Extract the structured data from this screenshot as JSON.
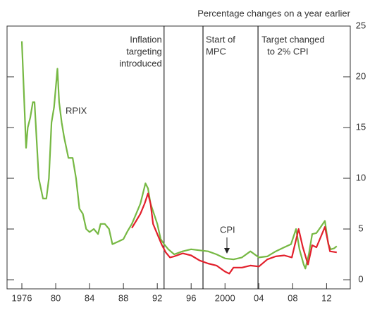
{
  "chart_data": {
    "type": "line",
    "y_label": "Percentage changes on a year earlier",
    "xlim": [
      1974.25,
      2014.8
    ],
    "ylim": [
      -0.9,
      25
    ],
    "xticks": [
      1976,
      {
        "value": 1980,
        "label": "80"
      },
      {
        "value": 1984,
        "label": "84"
      },
      {
        "value": 1988,
        "label": "88"
      },
      {
        "value": 1992,
        "label": "92"
      },
      {
        "value": 1996,
        "label": "96"
      },
      2000,
      {
        "value": 2004,
        "label": "04"
      },
      {
        "value": 2008,
        "label": "08"
      },
      {
        "value": 2012,
        "label": "12"
      }
    ],
    "yticks": [
      0,
      5,
      10,
      15,
      20,
      25
    ],
    "events": [
      {
        "x": 1992.8,
        "label": [
          "Inflation",
          "targeting",
          "introduced"
        ]
      },
      {
        "x": 1997.4,
        "label": [
          "Start of",
          "MPC"
        ]
      },
      {
        "x": 2003.9,
        "label": [
          "Target changed",
          "to 2% CPI"
        ]
      }
    ],
    "series": [
      {
        "name": "RPIX",
        "color": "#76b843",
        "x": [
          1976.0,
          1976.5,
          1976.7,
          1977.0,
          1977.3,
          1977.5,
          1977.8,
          1978.0,
          1978.5,
          1978.9,
          1979.2,
          1979.5,
          1979.8,
          1980.2,
          1980.4,
          1980.7,
          1981.0,
          1981.5,
          1982.0,
          1982.4,
          1982.8,
          1983.2,
          1983.6,
          1984.0,
          1984.5,
          1985.0,
          1985.3,
          1985.8,
          1986.3,
          1986.7,
          1987.5,
          1988.0,
          1988.5,
          1989.0,
          1989.5,
          1990.0,
          1990.3,
          1990.6,
          1990.9,
          1991.2,
          1991.6,
          1992.0,
          1992.4,
          1992.8,
          1993.3,
          1994,
          1995,
          1996,
          1997,
          1998,
          1999,
          2000,
          2001,
          2002,
          2003,
          2004,
          2005,
          2006,
          2007,
          2007.8,
          2008.4,
          2008.8,
          2009.3,
          2009.5,
          2009.9,
          2010.3,
          2010.8,
          2011.3,
          2011.8,
          2012.2,
          2012.5,
          2012.9,
          2013.2
        ],
        "values": [
          23.5,
          13,
          15,
          16,
          17.5,
          17.5,
          13,
          10,
          8,
          8,
          10,
          15.5,
          17,
          20.8,
          17.5,
          15.5,
          14,
          12,
          12,
          10,
          7,
          6.5,
          5,
          4.7,
          5,
          4.5,
          5.5,
          5.5,
          5,
          3.5,
          3.8,
          4,
          4.8,
          5.5,
          6.5,
          7.5,
          8.5,
          9.5,
          9,
          7.5,
          6.5,
          5.5,
          4,
          3.5,
          3,
          2.5,
          2.8,
          3,
          2.9,
          2.8,
          2.5,
          2.1,
          2,
          2.2,
          2.8,
          2.2,
          2.3,
          2.8,
          3.2,
          3.5,
          5,
          3,
          1.5,
          1.1,
          2.5,
          4.5,
          4.6,
          5.2,
          5.8,
          3.5,
          3,
          3.1,
          3.3
        ]
      },
      {
        "name": "CPI",
        "color": "#e2202c",
        "x": [
          1989.0,
          1989.5,
          1990.0,
          1990.5,
          1990.9,
          1991.2,
          1991.5,
          1992.0,
          1992.5,
          1993,
          1993.5,
          1994,
          1995,
          1996,
          1997,
          1998,
          1999,
          2000,
          2000.5,
          2001,
          2002,
          2003,
          2004,
          2005,
          2006,
          2007,
          2007.9,
          2008.7,
          2009.2,
          2009.8,
          2010.3,
          2010.8,
          2011.8,
          2012.4,
          2013.2
        ],
        "values": [
          5.1,
          5.8,
          6.5,
          7.5,
          8.5,
          7.5,
          5.5,
          4.5,
          3.5,
          2.7,
          2.2,
          2.3,
          2.6,
          2.4,
          1.9,
          1.6,
          1.4,
          0.8,
          0.6,
          1.2,
          1.2,
          1.4,
          1.3,
          2,
          2.3,
          2.4,
          2.2,
          5,
          3.2,
          1.5,
          3.4,
          3.2,
          5.2,
          2.8,
          2.7
        ]
      }
    ]
  }
}
